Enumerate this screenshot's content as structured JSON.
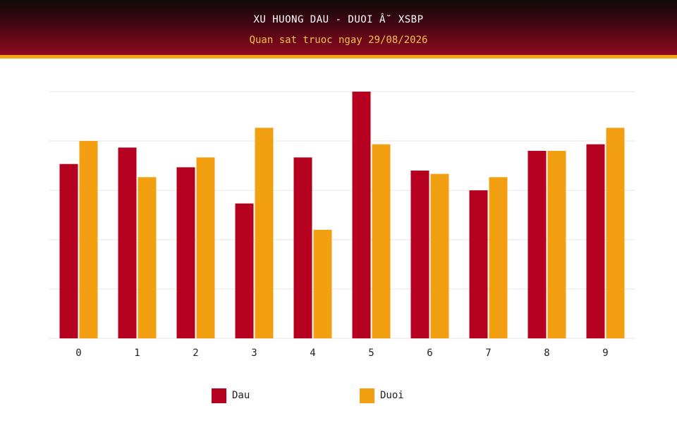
{
  "header": {
    "title": "XU HUONG DAU - DUOI Â˘ XSBP",
    "subtitle": "Quan sat truoc ngay 29/08/2026"
  },
  "colors": {
    "dau": "#b5001f",
    "duoi": "#f2a012",
    "grid": "#e6e6e6",
    "header_accent": "#f2a516"
  },
  "legend": {
    "dau_label": "Dau",
    "duoi_label": "Duoi"
  },
  "chart_data": {
    "type": "bar",
    "title": "XU HUONG DAU - DUOI Â˘ XSBP",
    "subtitle": "Quan sat truoc ngay 29/08/2026",
    "categories": [
      "0",
      "1",
      "2",
      "3",
      "4",
      "5",
      "6",
      "7",
      "8",
      "9"
    ],
    "series": [
      {
        "name": "Dau",
        "values": [
          53,
          58,
          52,
          41,
          55,
          75,
          51,
          45,
          57,
          59
        ]
      },
      {
        "name": "Duoi",
        "values": [
          60,
          49,
          55,
          64,
          33,
          59,
          50,
          49,
          57,
          64
        ]
      }
    ],
    "ylim": [
      0,
      75
    ],
    "grid": true,
    "legend_position": "bottom"
  }
}
